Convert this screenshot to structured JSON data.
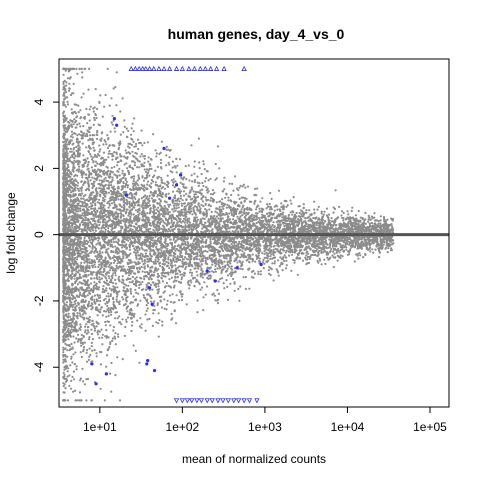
{
  "chart_data": {
    "type": "scatter",
    "title": "human genes, day_4_vs_0",
    "xlabel": "mean of normalized counts",
    "ylabel": "log fold change",
    "x_scale": "log10",
    "xlim": [
      3.2,
      170000
    ],
    "ylim": [
      -5.2,
      5.3
    ],
    "x_ticks": [
      {
        "value": 10,
        "label": "1e+01"
      },
      {
        "value": 100,
        "label": "1e+02"
      },
      {
        "value": 1000,
        "label": "1e+03"
      },
      {
        "value": 10000,
        "label": "1e+04"
      },
      {
        "value": 100000,
        "label": "1e+05"
      }
    ],
    "y_ticks": [
      {
        "value": -4,
        "label": "-4"
      },
      {
        "value": -2,
        "label": "-2"
      },
      {
        "value": 0,
        "label": "0"
      },
      {
        "value": 2,
        "label": "2"
      },
      {
        "value": 4,
        "label": "4"
      }
    ],
    "reference_line": {
      "y": 0,
      "color": "#555555"
    },
    "colors": {
      "nonsignificant": "#8c8c8c",
      "significant": "#2b2bff",
      "capped_marker": "#2b2bff"
    },
    "capped_limits": {
      "upper": 5,
      "lower": -5
    },
    "significant_points": [
      {
        "x": 15,
        "y": 3.5
      },
      {
        "x": 16,
        "y": 3.3
      },
      {
        "x": 21,
        "y": 1.2
      },
      {
        "x": 60,
        "y": 2.6
      },
      {
        "x": 70,
        "y": 1.1
      },
      {
        "x": 85,
        "y": 1.5
      },
      {
        "x": 95,
        "y": 1.8
      },
      {
        "x": 40,
        "y": -1.6
      },
      {
        "x": 43,
        "y": -2.1
      },
      {
        "x": 200,
        "y": -1.1
      },
      {
        "x": 250,
        "y": -1.4
      },
      {
        "x": 460,
        "y": -1.0
      },
      {
        "x": 900,
        "y": -0.9
      },
      {
        "x": 8,
        "y": -3.9
      },
      {
        "x": 9,
        "y": -4.5
      },
      {
        "x": 12,
        "y": -4.2
      },
      {
        "x": 37,
        "y": -3.9
      },
      {
        "x": 38,
        "y": -3.8
      },
      {
        "x": 46,
        "y": -4.1
      }
    ],
    "capped_points": [
      {
        "x": 24,
        "y": 5
      },
      {
        "x": 27,
        "y": 5
      },
      {
        "x": 30,
        "y": 5
      },
      {
        "x": 33,
        "y": 5
      },
      {
        "x": 36,
        "y": 5
      },
      {
        "x": 40,
        "y": 5
      },
      {
        "x": 45,
        "y": 5
      },
      {
        "x": 52,
        "y": 5
      },
      {
        "x": 60,
        "y": 5
      },
      {
        "x": 70,
        "y": 5
      },
      {
        "x": 85,
        "y": 5
      },
      {
        "x": 100,
        "y": 5
      },
      {
        "x": 120,
        "y": 5
      },
      {
        "x": 140,
        "y": 5
      },
      {
        "x": 165,
        "y": 5
      },
      {
        "x": 190,
        "y": 5
      },
      {
        "x": 220,
        "y": 5
      },
      {
        "x": 260,
        "y": 5
      },
      {
        "x": 320,
        "y": 5
      },
      {
        "x": 560,
        "y": 5
      },
      {
        "x": 85,
        "y": -5
      },
      {
        "x": 100,
        "y": -5
      },
      {
        "x": 115,
        "y": -5
      },
      {
        "x": 130,
        "y": -5
      },
      {
        "x": 150,
        "y": -5
      },
      {
        "x": 170,
        "y": -5
      },
      {
        "x": 200,
        "y": -5
      },
      {
        "x": 230,
        "y": -5
      },
      {
        "x": 270,
        "y": -5
      },
      {
        "x": 310,
        "y": -5
      },
      {
        "x": 360,
        "y": -5
      },
      {
        "x": 420,
        "y": -5
      },
      {
        "x": 480,
        "y": -5
      },
      {
        "x": 560,
        "y": -5
      },
      {
        "x": 650,
        "y": -5
      },
      {
        "x": 800,
        "y": -5
      }
    ]
  }
}
